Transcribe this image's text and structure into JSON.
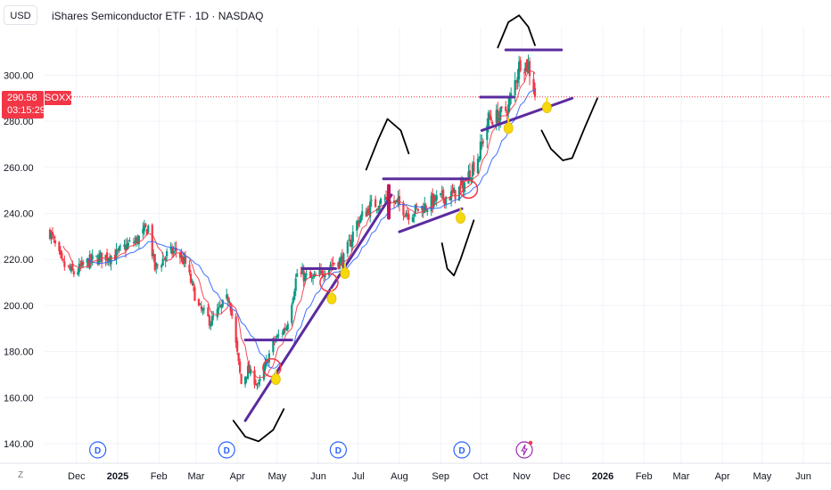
{
  "header": {
    "currency": "USD",
    "title": "iShares Semiconductor ETF · 1D · NASDAQ"
  },
  "price_tag": {
    "price": "290.58",
    "countdown": "03:15:29",
    "symbol": "SOXX"
  },
  "z_label": "Z",
  "colors": {
    "up": "#089981",
    "down": "#f23645",
    "ma_fast": "#f23645",
    "ma_slow": "#2962ff",
    "drawing": "#5b2c9f",
    "circle": "#f23645",
    "dividend": "#2962ff",
    "earnings": "#9c27b0"
  },
  "chart_data": {
    "type": "candlestick",
    "title": "iShares Semiconductor ETF · 1D · NASDAQ",
    "y_ticks": [
      "140.00",
      "160.00",
      "180.00",
      "200.00",
      "220.00",
      "240.00",
      "260.00",
      "280.00",
      "300.00"
    ],
    "ylim": [
      136,
      330
    ],
    "x_ticks": [
      {
        "label": "Dec",
        "date": "2024-12-01",
        "bold": false
      },
      {
        "label": "2025",
        "date": "2025-01-01",
        "bold": true
      },
      {
        "label": "Feb",
        "date": "2025-02-01",
        "bold": false
      },
      {
        "label": "Mar",
        "date": "2025-03-01",
        "bold": false
      },
      {
        "label": "Apr",
        "date": "2025-04-01",
        "bold": false
      },
      {
        "label": "May",
        "date": "2025-05-01",
        "bold": false
      },
      {
        "label": "Jun",
        "date": "2025-06-01",
        "bold": false
      },
      {
        "label": "Jul",
        "date": "2025-07-01",
        "bold": false
      },
      {
        "label": "Aug",
        "date": "2025-08-01",
        "bold": false
      },
      {
        "label": "Sep",
        "date": "2025-09-01",
        "bold": false
      },
      {
        "label": "Oct",
        "date": "2025-10-01",
        "bold": false
      },
      {
        "label": "Nov",
        "date": "2025-11-01",
        "bold": false
      },
      {
        "label": "Dec",
        "date": "2025-12-01",
        "bold": false
      },
      {
        "label": "2026",
        "date": "2026-01-01",
        "bold": true
      },
      {
        "label": "Feb",
        "date": "2026-02-01",
        "bold": false
      },
      {
        "label": "Mar",
        "date": "2026-03-01",
        "bold": false
      },
      {
        "label": "Apr",
        "date": "2026-04-01",
        "bold": false
      },
      {
        "label": "May",
        "date": "2026-05-01",
        "bold": false
      },
      {
        "label": "Jun",
        "date": "2026-06-01",
        "bold": false
      }
    ],
    "last_price": 290.58,
    "close_path": [
      [
        "2024-11-11",
        232
      ],
      [
        "2024-11-20",
        218
      ],
      [
        "2024-11-29",
        214
      ],
      [
        "2024-12-10",
        219
      ],
      [
        "2024-12-20",
        221
      ],
      [
        "2024-12-31",
        222
      ],
      [
        "2025-01-08",
        226
      ],
      [
        "2025-01-15",
        228
      ],
      [
        "2025-01-24",
        234
      ],
      [
        "2025-01-29",
        216
      ],
      [
        "2025-02-07",
        222
      ],
      [
        "2025-02-14",
        224
      ],
      [
        "2025-02-21",
        218
      ],
      [
        "2025-03-03",
        199
      ],
      [
        "2025-03-12",
        193
      ],
      [
        "2025-03-21",
        200
      ],
      [
        "2025-03-26",
        204
      ],
      [
        "2025-04-04",
        166
      ],
      [
        "2025-04-09",
        172
      ],
      [
        "2025-04-17",
        165
      ],
      [
        "2025-04-28",
        184
      ],
      [
        "2025-05-08",
        191
      ],
      [
        "2025-05-16",
        214
      ],
      [
        "2025-05-28",
        211
      ],
      [
        "2025-06-10",
        218
      ],
      [
        "2025-06-20",
        220
      ],
      [
        "2025-06-30",
        236
      ],
      [
        "2025-07-10",
        243
      ],
      [
        "2025-07-21",
        246
      ],
      [
        "2025-07-31",
        244
      ],
      [
        "2025-08-08",
        240
      ],
      [
        "2025-08-20",
        243
      ],
      [
        "2025-08-29",
        246
      ],
      [
        "2025-09-10",
        248
      ],
      [
        "2025-09-18",
        252
      ],
      [
        "2025-09-30",
        266
      ],
      [
        "2025-10-07",
        281
      ],
      [
        "2025-10-15",
        282
      ],
      [
        "2025-10-22",
        286
      ],
      [
        "2025-10-31",
        306
      ],
      [
        "2025-11-06",
        304
      ],
      [
        "2025-11-12",
        290.58
      ]
    ],
    "series": [
      {
        "name": "",
        "kind": "ma-fast"
      },
      {
        "name": "",
        "kind": "ma-slow"
      }
    ],
    "annotations": {
      "dividends": [
        "2024-12-17",
        "2025-03-24",
        "2025-06-16",
        "2025-09-17"
      ],
      "earnings": [
        "2025-11-03"
      ]
    }
  }
}
